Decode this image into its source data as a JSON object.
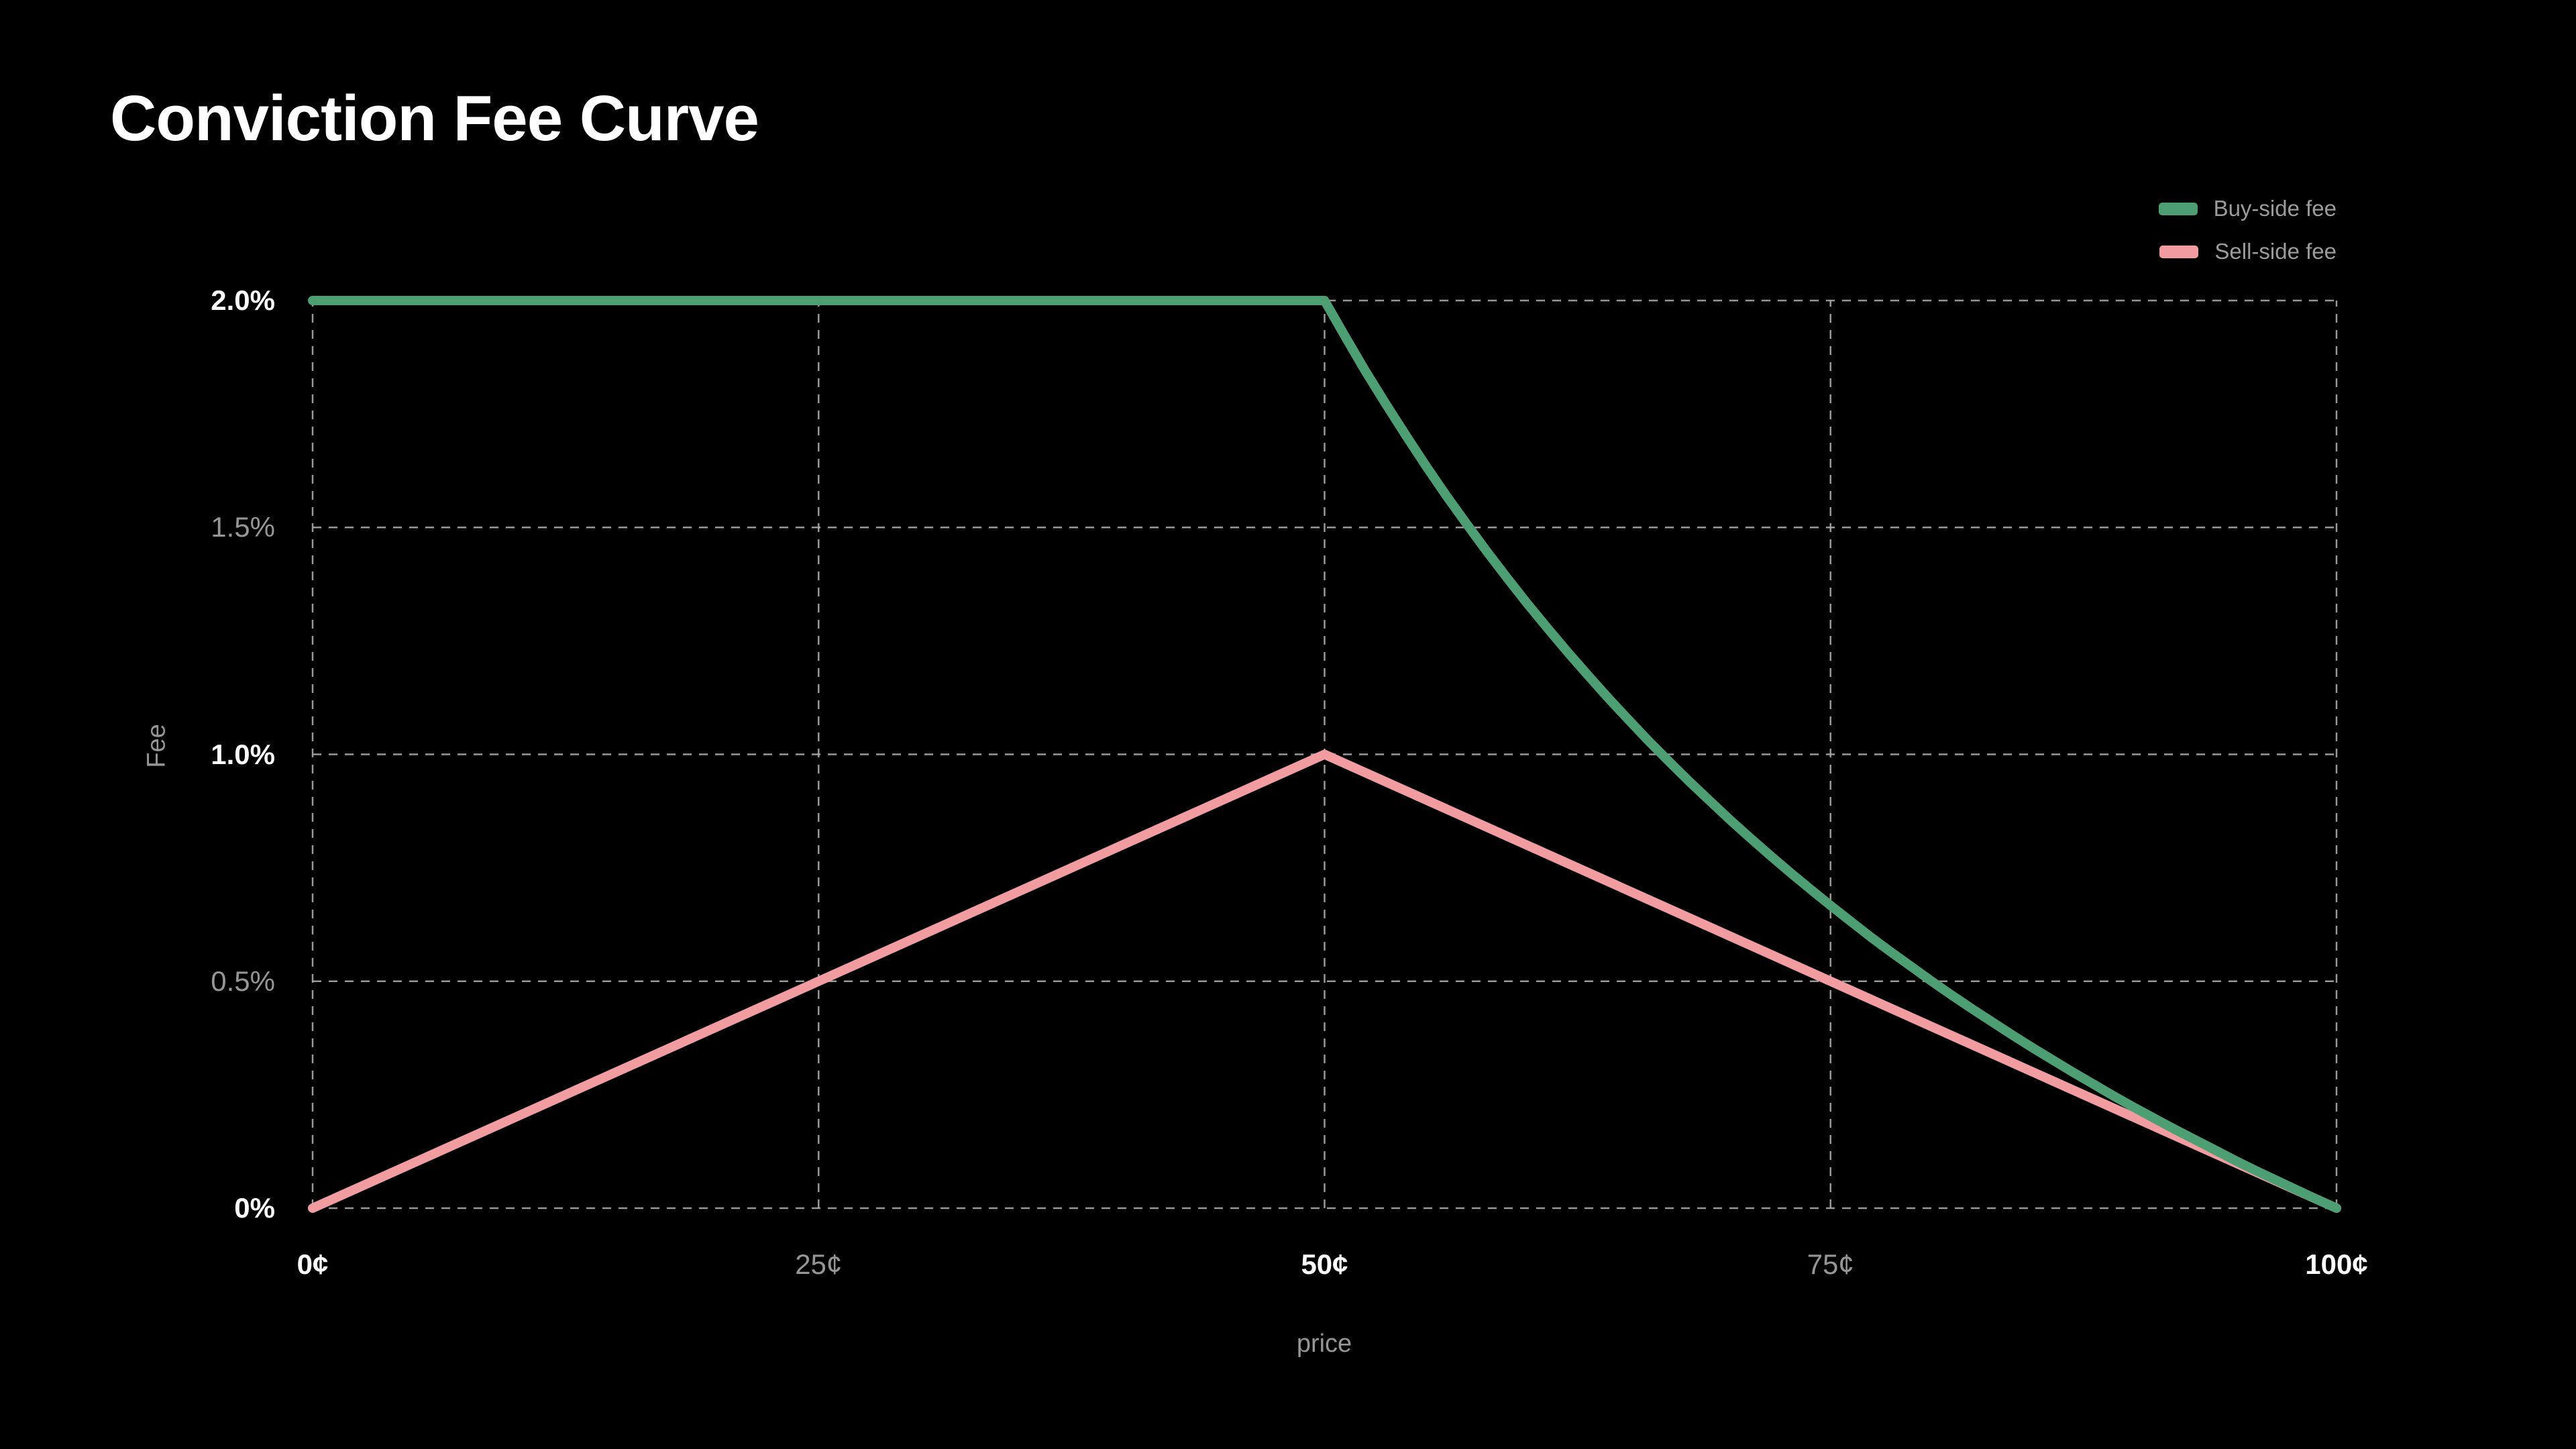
{
  "title": "Conviction Fee Curve",
  "colors": {
    "background": "#000000",
    "title_text": "#FFFFFF",
    "major_tick_text": "#FFFFFF",
    "minor_tick_text": "#969696",
    "legend_text": "#9B9B9B",
    "gridline": "#A8A8A8",
    "buy_side": "#4D9E73",
    "sell_side": "#F09CA1"
  },
  "legend": {
    "items": [
      {
        "label": "Buy-side fee",
        "color": "#4D9E73"
      },
      {
        "label": "Sell-side fee",
        "color": "#F09CA1"
      }
    ]
  },
  "chart_data": {
    "type": "line",
    "title": "Conviction Fee Curve",
    "xlabel": "price",
    "ylabel": "Fee",
    "xlim": [
      0,
      100
    ],
    "ylim": [
      0,
      2
    ],
    "grid": "dashed-both-axes",
    "legend_position": "top-right",
    "x_unit": "cents",
    "y_unit": "percent",
    "xticks": [
      {
        "value": 0,
        "label": "0¢",
        "emphasis": true
      },
      {
        "value": 25,
        "label": "25¢",
        "emphasis": false
      },
      {
        "value": 50,
        "label": "50¢",
        "emphasis": true
      },
      {
        "value": 75,
        "label": "75¢",
        "emphasis": false
      },
      {
        "value": 100,
        "label": "100¢",
        "emphasis": true
      }
    ],
    "yticks": [
      {
        "value": 0,
        "label": "0%",
        "emphasis": true
      },
      {
        "value": 0.5,
        "label": "0.5%",
        "emphasis": false
      },
      {
        "value": 1,
        "label": "1.0%",
        "emphasis": true
      },
      {
        "value": 1.5,
        "label": "1.5%",
        "emphasis": false
      },
      {
        "value": 2,
        "label": "2.0%",
        "emphasis": true
      }
    ],
    "series": [
      {
        "name": "Sell-side fee",
        "color": "#F09CA1",
        "shape": "linear-tent",
        "points": [
          [
            0,
            0
          ],
          [
            50,
            1
          ],
          [
            100,
            0
          ]
        ]
      },
      {
        "name": "Buy-side fee",
        "color": "#4D9E73",
        "shape": "flat-then-decay",
        "points": [
          [
            0,
            2
          ],
          [
            50,
            2
          ],
          [
            51,
            1.922
          ],
          [
            52,
            1.846
          ],
          [
            53,
            1.774
          ],
          [
            54,
            1.704
          ],
          [
            55,
            1.636
          ],
          [
            56,
            1.571
          ],
          [
            57,
            1.509
          ],
          [
            58,
            1.448
          ],
          [
            59,
            1.39
          ],
          [
            60,
            1.333
          ],
          [
            61,
            1.279
          ],
          [
            62,
            1.226
          ],
          [
            63,
            1.175
          ],
          [
            64,
            1.125
          ],
          [
            65,
            1.077
          ],
          [
            66,
            1.03
          ],
          [
            67,
            0.985
          ],
          [
            68,
            0.941
          ],
          [
            69,
            0.899
          ],
          [
            70,
            0.857
          ],
          [
            71,
            0.817
          ],
          [
            72,
            0.778
          ],
          [
            73,
            0.74
          ],
          [
            74,
            0.703
          ],
          [
            75,
            0.667
          ],
          [
            76,
            0.632
          ],
          [
            77,
            0.597
          ],
          [
            78,
            0.564
          ],
          [
            79,
            0.532
          ],
          [
            80,
            0.5
          ],
          [
            81,
            0.469
          ],
          [
            82,
            0.439
          ],
          [
            83,
            0.41
          ],
          [
            84,
            0.381
          ],
          [
            85,
            0.353
          ],
          [
            86,
            0.326
          ],
          [
            87,
            0.299
          ],
          [
            88,
            0.273
          ],
          [
            89,
            0.247
          ],
          [
            90,
            0.222
          ],
          [
            91,
            0.198
          ],
          [
            92,
            0.174
          ],
          [
            93,
            0.151
          ],
          [
            94,
            0.128
          ],
          [
            95,
            0.105
          ],
          [
            96,
            0.083
          ],
          [
            97,
            0.062
          ],
          [
            98,
            0.041
          ],
          [
            99,
            0.02
          ],
          [
            100,
            0
          ]
        ]
      }
    ]
  }
}
